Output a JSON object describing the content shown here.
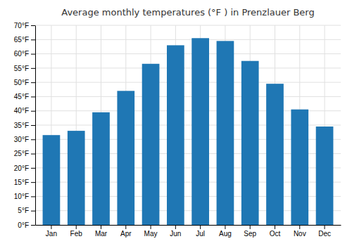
{
  "chart_data": {
    "type": "bar",
    "title": "Average monthly temperatures (°F ) in Prenzlauer Berg",
    "categories": [
      "Jan",
      "Feb",
      "Mar",
      "Apr",
      "May",
      "Jun",
      "Jul",
      "Aug",
      "Sep",
      "Oct",
      "Nov",
      "Dec"
    ],
    "values": [
      31.5,
      33.0,
      39.5,
      47.0,
      56.5,
      63.0,
      65.5,
      64.5,
      57.5,
      49.5,
      40.5,
      34.5
    ],
    "ylim": [
      0,
      70
    ],
    "yticks": [
      {
        "value": 0,
        "label": "0°F"
      },
      {
        "value": 5,
        "label": "5°F"
      },
      {
        "value": 10,
        "label": "10°F"
      },
      {
        "value": 15,
        "label": "15°F"
      },
      {
        "value": 20,
        "label": "20°F"
      },
      {
        "value": 25,
        "label": "25°F"
      },
      {
        "value": 30,
        "label": "30°F"
      },
      {
        "value": 35,
        "label": "35°F"
      },
      {
        "value": 40,
        "label": "40°F"
      },
      {
        "value": 45,
        "label": "45°F"
      },
      {
        "value": 50,
        "label": "50°F"
      },
      {
        "value": 55,
        "label": "55°F"
      },
      {
        "value": 60,
        "label": "60°F"
      },
      {
        "value": 65,
        "label": "65°F"
      },
      {
        "value": 70,
        "label": "70°F"
      }
    ],
    "grid": true
  }
}
